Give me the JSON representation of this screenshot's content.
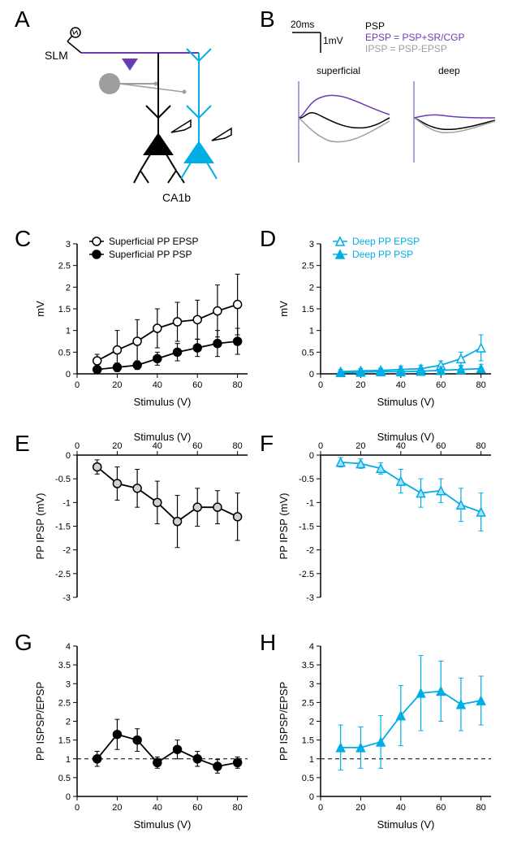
{
  "labels": {
    "A": "A",
    "B": "B",
    "C": "C",
    "D": "D",
    "E": "E",
    "F": "F",
    "G": "G",
    "H": "H"
  },
  "colors": {
    "black": "#000000",
    "purple": "#6a3cb5",
    "gray": "#9e9e9e",
    "cyan": "#00aee6",
    "lightgray_fill": "#d0d0d0",
    "paleblue_fill": "#a7dff7",
    "white": "#ffffff"
  },
  "panelA": {
    "slm": "SLM",
    "ca1b": "CA1b"
  },
  "panelB": {
    "scale_x": "20ms",
    "scale_y": "1mV",
    "legend_psp": "PSP",
    "legend_epsp": "EPSP = PSP+SR/CGP",
    "legend_ipsp": "IPSP = PSP-EPSP",
    "title_left": "superficial",
    "title_right": "deep"
  },
  "panelC": {
    "type": "line-scatter",
    "xlabel": "Stimulus (V)",
    "ylabel": "mV",
    "x_ticks": [
      0,
      20,
      40,
      60,
      80
    ],
    "y_ticks": [
      0,
      0.5,
      1,
      1.5,
      2,
      2.5,
      3
    ],
    "y_tick_labels": [
      "0",
      "0.5",
      "1",
      "1.5",
      "2",
      "2.5",
      "3"
    ],
    "xlim": [
      0,
      85
    ],
    "ylim": [
      0,
      3
    ],
    "legend": {
      "series1": "Superficial PP EPSP",
      "series2": "Superficial PP PSP"
    },
    "series1": {
      "color": "#000000",
      "marker": "circle-open",
      "fill": "#ffffff",
      "x": [
        10,
        20,
        30,
        40,
        50,
        60,
        70,
        80
      ],
      "y": [
        0.3,
        0.55,
        0.75,
        1.05,
        1.2,
        1.25,
        1.45,
        1.6
      ],
      "err": [
        0.15,
        0.45,
        0.5,
        0.45,
        0.45,
        0.45,
        0.6,
        0.7
      ]
    },
    "series2": {
      "color": "#000000",
      "marker": "circle",
      "fill": "#000000",
      "x": [
        10,
        20,
        30,
        40,
        50,
        60,
        70,
        80
      ],
      "y": [
        0.1,
        0.15,
        0.2,
        0.35,
        0.5,
        0.6,
        0.7,
        0.75
      ],
      "err": [
        0.05,
        0.1,
        0.1,
        0.15,
        0.2,
        0.2,
        0.3,
        0.3
      ]
    }
  },
  "panelD": {
    "xlabel": "Stimulus (V)",
    "ylabel": "mV",
    "x_ticks": [
      0,
      20,
      40,
      60,
      80
    ],
    "y_ticks": [
      0,
      0.5,
      1,
      1.5,
      2,
      2.5,
      3
    ],
    "y_tick_labels": [
      "0",
      "0.5",
      "1",
      "1.5",
      "2",
      "2.5",
      "3"
    ],
    "xlim": [
      0,
      85
    ],
    "ylim": [
      0,
      3
    ],
    "legend": {
      "series1": "Deep PP EPSP",
      "series2": "Deep PP PSP"
    },
    "series1": {
      "color": "#00aee6",
      "marker": "triangle-open",
      "fill": "#ffffff",
      "x": [
        10,
        20,
        30,
        40,
        50,
        60,
        70,
        80
      ],
      "y": [
        0.05,
        0.07,
        0.08,
        0.1,
        0.12,
        0.2,
        0.35,
        0.6
      ],
      "err": [
        0.05,
        0.05,
        0.05,
        0.08,
        0.08,
        0.1,
        0.15,
        0.3
      ]
    },
    "series2": {
      "color": "#00aee6",
      "marker": "triangle",
      "fill": "#00aee6",
      "x": [
        10,
        20,
        30,
        40,
        50,
        60,
        70,
        80
      ],
      "y": [
        0.03,
        0.04,
        0.05,
        0.05,
        0.06,
        0.08,
        0.1,
        0.12
      ],
      "err": [
        0.03,
        0.03,
        0.05,
        0.05,
        0.05,
        0.08,
        0.08,
        0.1
      ]
    }
  },
  "panelE": {
    "xlabel": "Stimulus (V)",
    "ylabel": "PP IPSP (mV)",
    "x_ticks": [
      0,
      20,
      40,
      60,
      80
    ],
    "y_ticks": [
      0,
      -0.5,
      -1,
      -1.5,
      -2,
      -2.5,
      -3
    ],
    "y_tick_labels": [
      "0",
      "-0.5",
      "-1",
      "-1.5",
      "-2",
      "-2.5",
      "-3"
    ],
    "xlim": [
      0,
      85
    ],
    "ylim": [
      -3,
      0
    ],
    "series1": {
      "color": "#000000",
      "marker": "circle",
      "fill": "#d0d0d0",
      "x": [
        10,
        20,
        30,
        40,
        50,
        60,
        70,
        80
      ],
      "y": [
        -0.25,
        -0.6,
        -0.7,
        -1.0,
        -1.4,
        -1.1,
        -1.1,
        -1.3
      ],
      "err": [
        0.15,
        0.35,
        0.4,
        0.45,
        0.55,
        0.4,
        0.35,
        0.5
      ]
    }
  },
  "panelF": {
    "xlabel": "Stimulus (V)",
    "ylabel": "PP IPSP (mV)",
    "x_ticks": [
      0,
      20,
      40,
      60,
      80
    ],
    "y_ticks": [
      0,
      -0.5,
      -1,
      -1.5,
      -2,
      -2.5,
      -3
    ],
    "y_tick_labels": [
      "0",
      "-0.5",
      "-1",
      "-1.5",
      "-2",
      "-2.5",
      "-3"
    ],
    "xlim": [
      0,
      85
    ],
    "ylim": [
      -3,
      0
    ],
    "series1": {
      "color": "#00aee6",
      "marker": "triangle",
      "fill": "#a7dff7",
      "x": [
        10,
        20,
        30,
        40,
        50,
        60,
        70,
        80
      ],
      "y": [
        -0.15,
        -0.18,
        -0.28,
        -0.55,
        -0.8,
        -0.75,
        -1.05,
        -1.2
      ],
      "err": [
        0.1,
        0.1,
        0.12,
        0.25,
        0.3,
        0.25,
        0.35,
        0.4
      ]
    }
  },
  "panelG": {
    "xlabel": "Stimulus (V)",
    "ylabel": "PP ISPSP/EPSP",
    "x_ticks": [
      0,
      20,
      40,
      60,
      80
    ],
    "y_ticks": [
      0,
      0.5,
      1,
      1.5,
      2,
      2.5,
      3,
      3.5,
      4
    ],
    "y_tick_labels": [
      "0",
      "0.5",
      "1",
      "1.5",
      "2",
      "2.5",
      "3",
      "3.5",
      "4"
    ],
    "xlim": [
      0,
      85
    ],
    "ylim": [
      0,
      4
    ],
    "ref_line": 1,
    "series1": {
      "color": "#000000",
      "marker": "circle",
      "fill": "#000000",
      "x": [
        10,
        20,
        30,
        40,
        50,
        60,
        70,
        80
      ],
      "y": [
        1.0,
        1.65,
        1.5,
        0.9,
        1.25,
        1.0,
        0.8,
        0.9
      ],
      "err": [
        0.2,
        0.4,
        0.3,
        0.15,
        0.25,
        0.2,
        0.18,
        0.15
      ]
    }
  },
  "panelH": {
    "xlabel": "Stimulus (V)",
    "ylabel": "PP ISPSP/EPSP",
    "x_ticks": [
      0,
      20,
      40,
      60,
      80
    ],
    "y_ticks": [
      0,
      0.5,
      1,
      1.5,
      2,
      2.5,
      3,
      3.5,
      4
    ],
    "y_tick_labels": [
      "0",
      "0.5",
      "1",
      "1.5",
      "2",
      "2.5",
      "3",
      "3.5",
      "4"
    ],
    "xlim": [
      0,
      85
    ],
    "ylim": [
      0,
      4
    ],
    "ref_line": 1,
    "series1": {
      "color": "#00aee6",
      "marker": "triangle",
      "fill": "#00aee6",
      "x": [
        10,
        20,
        30,
        40,
        50,
        60,
        70,
        80
      ],
      "y": [
        1.3,
        1.3,
        1.45,
        2.15,
        2.75,
        2.8,
        2.45,
        2.55
      ],
      "err": [
        0.6,
        0.55,
        0.7,
        0.8,
        1.0,
        0.8,
        0.7,
        0.65
      ]
    }
  }
}
